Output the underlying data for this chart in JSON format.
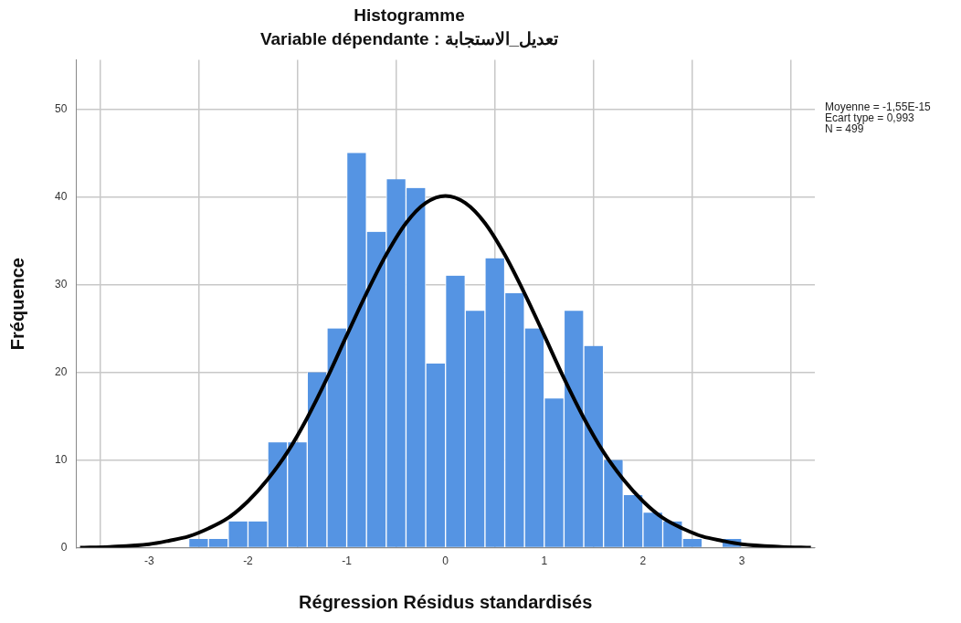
{
  "chart_data": {
    "type": "histogram",
    "title": "Histogramme",
    "subtitle": "Variable dépendante : تعديل_الاستجابة",
    "xlabel": "Régression Résidus standardisés",
    "ylabel": "Fréquence",
    "bins": [
      -2.6,
      -2.4,
      -2.2,
      -2.0,
      -1.8,
      -1.6,
      -1.4,
      -1.2,
      -1.0,
      -0.8,
      -0.6,
      -0.4,
      -0.2,
      0,
      0.2,
      0.4,
      0.6,
      0.8,
      1.0,
      1.2,
      1.4,
      1.6,
      1.8,
      2.0,
      2.2,
      2.4,
      2.6,
      2.8,
      3.0
    ],
    "values": [
      1,
      1,
      3,
      3,
      12,
      12,
      20,
      25,
      45,
      36,
      42,
      41,
      21,
      31,
      27,
      33,
      29,
      25,
      17,
      27,
      23,
      10,
      6,
      4,
      3,
      1,
      0,
      1
    ],
    "color": "#5594e3",
    "series": [
      {
        "type": "line",
        "color": "#000000",
        "x": [
          -3.7,
          -3.4,
          -3.0,
          -2.8,
          -2.6,
          -2.4,
          -2.2,
          -2.0,
          -1.8,
          -1.6,
          -1.4,
          -1.2,
          -1.0,
          -0.8,
          -0.6,
          -0.4,
          -0.2,
          0,
          0.2,
          0.4,
          0.6,
          0.8,
          1.0,
          1.2,
          1.4,
          1.6,
          1.8,
          2.0,
          2.2,
          2.4,
          2.6,
          2.8,
          3.0,
          3.4,
          3.7
        ],
        "values": [
          0,
          0.1,
          0.4,
          0.8,
          1.3,
          2.2,
          3.4,
          5.3,
          7.8,
          10.9,
          14.8,
          19.3,
          24.2,
          29.0,
          33.4,
          37.0,
          39.3,
          40.1,
          39.3,
          37.0,
          33.4,
          29.0,
          24.2,
          19.3,
          14.8,
          10.9,
          7.8,
          5.3,
          3.4,
          2.2,
          1.3,
          0.8,
          0.4,
          0.1,
          0
        ]
      }
    ],
    "xlim": [
      -3.74,
      3.74
    ],
    "xticks": [
      -3,
      -2,
      -1,
      0,
      1,
      2,
      3
    ],
    "ylim": [
      0,
      55.6
    ],
    "yticks": [
      0,
      10,
      20,
      30,
      40,
      50
    ],
    "grid": true,
    "annotations": [
      "Moyenne = -1,55E-15",
      "Ecart type = 0,993",
      "N = 499"
    ]
  }
}
